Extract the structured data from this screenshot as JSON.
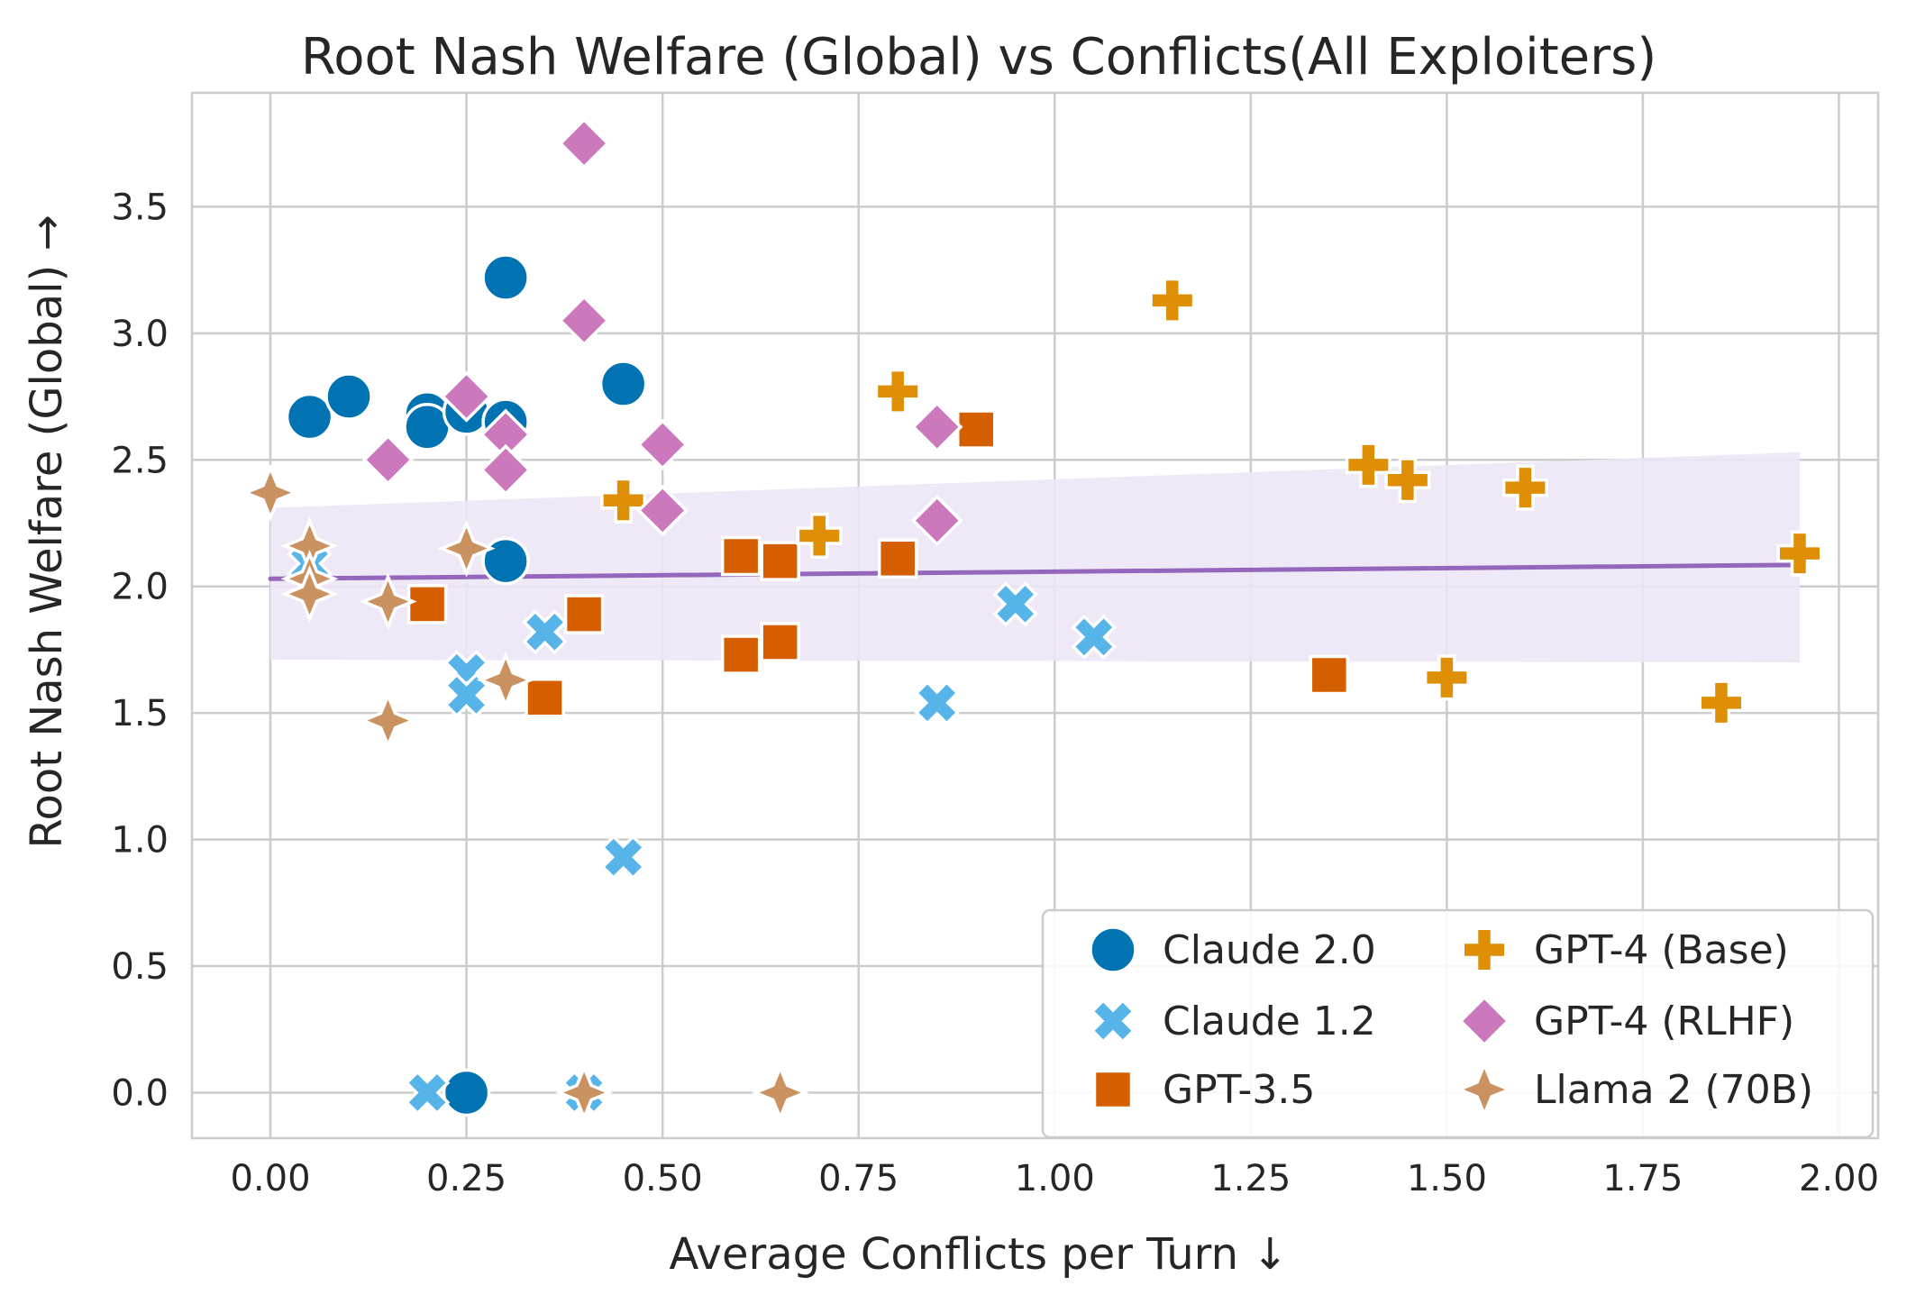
{
  "chart_data": {
    "type": "scatter",
    "title": "Root Nash Welfare (Global) vs Conflicts(All Exploiters)",
    "xlabel": "Average Conflicts per Turn ↓",
    "ylabel": "Root Nash Welfare (Global) →",
    "xlim": [
      -0.1,
      2.05
    ],
    "ylim": [
      -0.18,
      3.95
    ],
    "xticks": [
      "0.00",
      "0.25",
      "0.50",
      "0.75",
      "1.00",
      "1.25",
      "1.50",
      "1.75",
      "2.00"
    ],
    "yticks": [
      "0.0",
      "0.5",
      "1.0",
      "1.5",
      "2.0",
      "2.5",
      "3.0",
      "3.5"
    ],
    "grid": true,
    "legend_position": "lower-right",
    "series": [
      {
        "name": "Claude 2.0",
        "marker": "circle",
        "color": "#0173b2",
        "points": [
          [
            0.05,
            2.67
          ],
          [
            0.1,
            2.75
          ],
          [
            0.2,
            2.68
          ],
          [
            0.2,
            2.63
          ],
          [
            0.25,
            2.69
          ],
          [
            0.3,
            3.22
          ],
          [
            0.3,
            2.65
          ],
          [
            0.3,
            2.1
          ],
          [
            0.45,
            2.8
          ],
          [
            0.25,
            0.0
          ]
        ]
      },
      {
        "name": "Claude 1.2",
        "marker": "x",
        "color": "#56b4e9",
        "points": [
          [
            0.05,
            2.09
          ],
          [
            0.25,
            1.66
          ],
          [
            0.25,
            1.57
          ],
          [
            0.35,
            1.82
          ],
          [
            0.45,
            0.93
          ],
          [
            0.85,
            1.54
          ],
          [
            0.95,
            1.93
          ],
          [
            1.05,
            1.8
          ],
          [
            0.2,
            0.0
          ],
          [
            0.4,
            0.0
          ]
        ]
      },
      {
        "name": "GPT-3.5",
        "marker": "square",
        "color": "#d55e00",
        "points": [
          [
            0.2,
            1.93
          ],
          [
            0.35,
            1.56
          ],
          [
            0.4,
            1.89
          ],
          [
            0.6,
            2.12
          ],
          [
            0.6,
            1.73
          ],
          [
            0.65,
            2.1
          ],
          [
            0.65,
            1.78
          ],
          [
            0.8,
            2.11
          ],
          [
            0.9,
            2.62
          ],
          [
            1.35,
            1.65
          ]
        ]
      },
      {
        "name": "GPT-4 (Base)",
        "marker": "plus",
        "color": "#de8f05",
        "points": [
          [
            0.45,
            2.34
          ],
          [
            0.7,
            2.2
          ],
          [
            0.8,
            2.77
          ],
          [
            1.15,
            3.13
          ],
          [
            1.4,
            2.48
          ],
          [
            1.45,
            2.42
          ],
          [
            1.5,
            1.64
          ],
          [
            1.6,
            2.39
          ],
          [
            1.85,
            1.54
          ],
          [
            1.95,
            2.13
          ]
        ]
      },
      {
        "name": "GPT-4 (RLHF)",
        "marker": "diamond",
        "color": "#cc78bc",
        "points": [
          [
            0.15,
            2.5
          ],
          [
            0.25,
            2.75
          ],
          [
            0.3,
            2.6
          ],
          [
            0.3,
            2.46
          ],
          [
            0.4,
            3.75
          ],
          [
            0.4,
            3.05
          ],
          [
            0.5,
            2.56
          ],
          [
            0.5,
            2.3
          ],
          [
            0.85,
            2.63
          ],
          [
            0.85,
            2.26
          ]
        ]
      },
      {
        "name": "Llama 2 (70B)",
        "marker": "star4",
        "color": "#ca9161",
        "points": [
          [
            0.0,
            2.37
          ],
          [
            0.05,
            2.16
          ],
          [
            0.05,
            2.03
          ],
          [
            0.05,
            1.97
          ],
          [
            0.15,
            1.94
          ],
          [
            0.15,
            1.47
          ],
          [
            0.25,
            2.15
          ],
          [
            0.3,
            1.63
          ],
          [
            0.4,
            0.0
          ],
          [
            0.65,
            0.0
          ]
        ]
      }
    ],
    "trendline": {
      "color": "#9467bd",
      "band_color": "#ede6f5",
      "x": [
        0.0,
        1.95
      ],
      "y": [
        2.03,
        2.085
      ],
      "band_lower": [
        1.71,
        1.7
      ],
      "band_upper": [
        2.31,
        2.53
      ]
    },
    "legend": {
      "columns": 2,
      "entries": [
        "Claude 2.0",
        "Claude 1.2",
        "GPT-3.5",
        "GPT-4 (Base)",
        "GPT-4 (RLHF)",
        "Llama 2 (70B)"
      ]
    }
  }
}
